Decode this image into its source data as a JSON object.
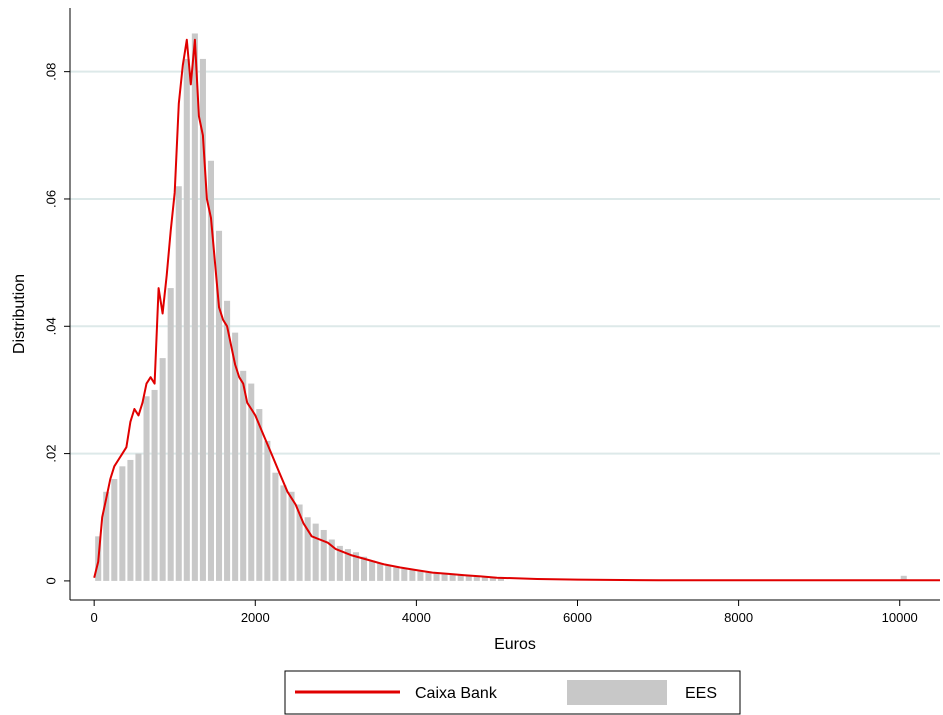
{
  "chart_data": {
    "type": "bar",
    "title": "",
    "xlabel": "Euros",
    "ylabel": "Distribution",
    "xlim": [
      -300,
      10500
    ],
    "ylim": [
      -0.003,
      0.09
    ],
    "x_ticks": [
      0,
      2000,
      4000,
      6000,
      8000,
      10000
    ],
    "x_tick_labels": [
      "0",
      "2000",
      "4000",
      "6000",
      "8000",
      "10000"
    ],
    "y_ticks": [
      0,
      0.02,
      0.04,
      0.06,
      0.08
    ],
    "y_tick_labels": [
      "0",
      ".02",
      ".04",
      ".06",
      ".08"
    ],
    "grid": true,
    "legend_position": "bottom",
    "colors": {
      "histogram": "#c8c8c8",
      "line": "#e00000",
      "grid": "#dde9e9"
    },
    "series": [
      {
        "name": "EES",
        "kind": "histogram",
        "bin_width": 100,
        "x": [
          0,
          100,
          200,
          300,
          400,
          500,
          600,
          700,
          800,
          900,
          1000,
          1100,
          1200,
          1300,
          1400,
          1500,
          1600,
          1700,
          1800,
          1900,
          2000,
          2100,
          2200,
          2300,
          2400,
          2500,
          2600,
          2700,
          2800,
          2900,
          3000,
          3100,
          3200,
          3300,
          3400,
          3500,
          3600,
          3700,
          3800,
          3900,
          4000,
          4100,
          4200,
          4300,
          4400,
          4500,
          4600,
          4700,
          4800,
          4900,
          5000,
          10000
        ],
        "values": [
          0.007,
          0.014,
          0.016,
          0.018,
          0.019,
          0.02,
          0.029,
          0.03,
          0.035,
          0.046,
          0.062,
          0.082,
          0.086,
          0.082,
          0.066,
          0.055,
          0.044,
          0.039,
          0.033,
          0.031,
          0.027,
          0.022,
          0.017,
          0.015,
          0.014,
          0.012,
          0.01,
          0.009,
          0.008,
          0.0065,
          0.0055,
          0.005,
          0.0045,
          0.0038,
          0.0032,
          0.0028,
          0.0024,
          0.0021,
          0.0019,
          0.0017,
          0.0015,
          0.0013,
          0.0012,
          0.0011,
          0.001,
          0.0009,
          0.0008,
          0.0007,
          0.0006,
          0.0005,
          0.0004,
          0.0008
        ]
      },
      {
        "name": "Caixa Bank",
        "kind": "line",
        "x": [
          0,
          50,
          100,
          150,
          200,
          250,
          300,
          350,
          400,
          450,
          500,
          550,
          600,
          650,
          700,
          750,
          800,
          850,
          900,
          950,
          1000,
          1050,
          1100,
          1150,
          1200,
          1250,
          1300,
          1350,
          1400,
          1450,
          1500,
          1550,
          1600,
          1650,
          1700,
          1750,
          1800,
          1850,
          1900,
          1950,
          2000,
          2100,
          2200,
          2300,
          2400,
          2500,
          2600,
          2700,
          2800,
          2900,
          3000,
          3200,
          3400,
          3600,
          3800,
          4000,
          4200,
          4400,
          4600,
          4800,
          5000,
          5500,
          6000,
          7000,
          8000,
          9000,
          10000,
          10500
        ],
        "values": [
          0.0005,
          0.003,
          0.01,
          0.013,
          0.016,
          0.018,
          0.019,
          0.02,
          0.021,
          0.025,
          0.027,
          0.026,
          0.028,
          0.031,
          0.032,
          0.031,
          0.046,
          0.042,
          0.048,
          0.055,
          0.061,
          0.075,
          0.081,
          0.085,
          0.078,
          0.085,
          0.073,
          0.07,
          0.06,
          0.057,
          0.05,
          0.043,
          0.041,
          0.04,
          0.037,
          0.034,
          0.032,
          0.031,
          0.028,
          0.027,
          0.026,
          0.023,
          0.02,
          0.017,
          0.014,
          0.012,
          0.009,
          0.007,
          0.0065,
          0.006,
          0.005,
          0.004,
          0.0033,
          0.0026,
          0.0021,
          0.0017,
          0.0013,
          0.0011,
          0.0009,
          0.0007,
          0.0005,
          0.0003,
          0.0002,
          0.0001,
          0.0001,
          0.0001,
          0.0001,
          0.0001
        ]
      }
    ]
  }
}
